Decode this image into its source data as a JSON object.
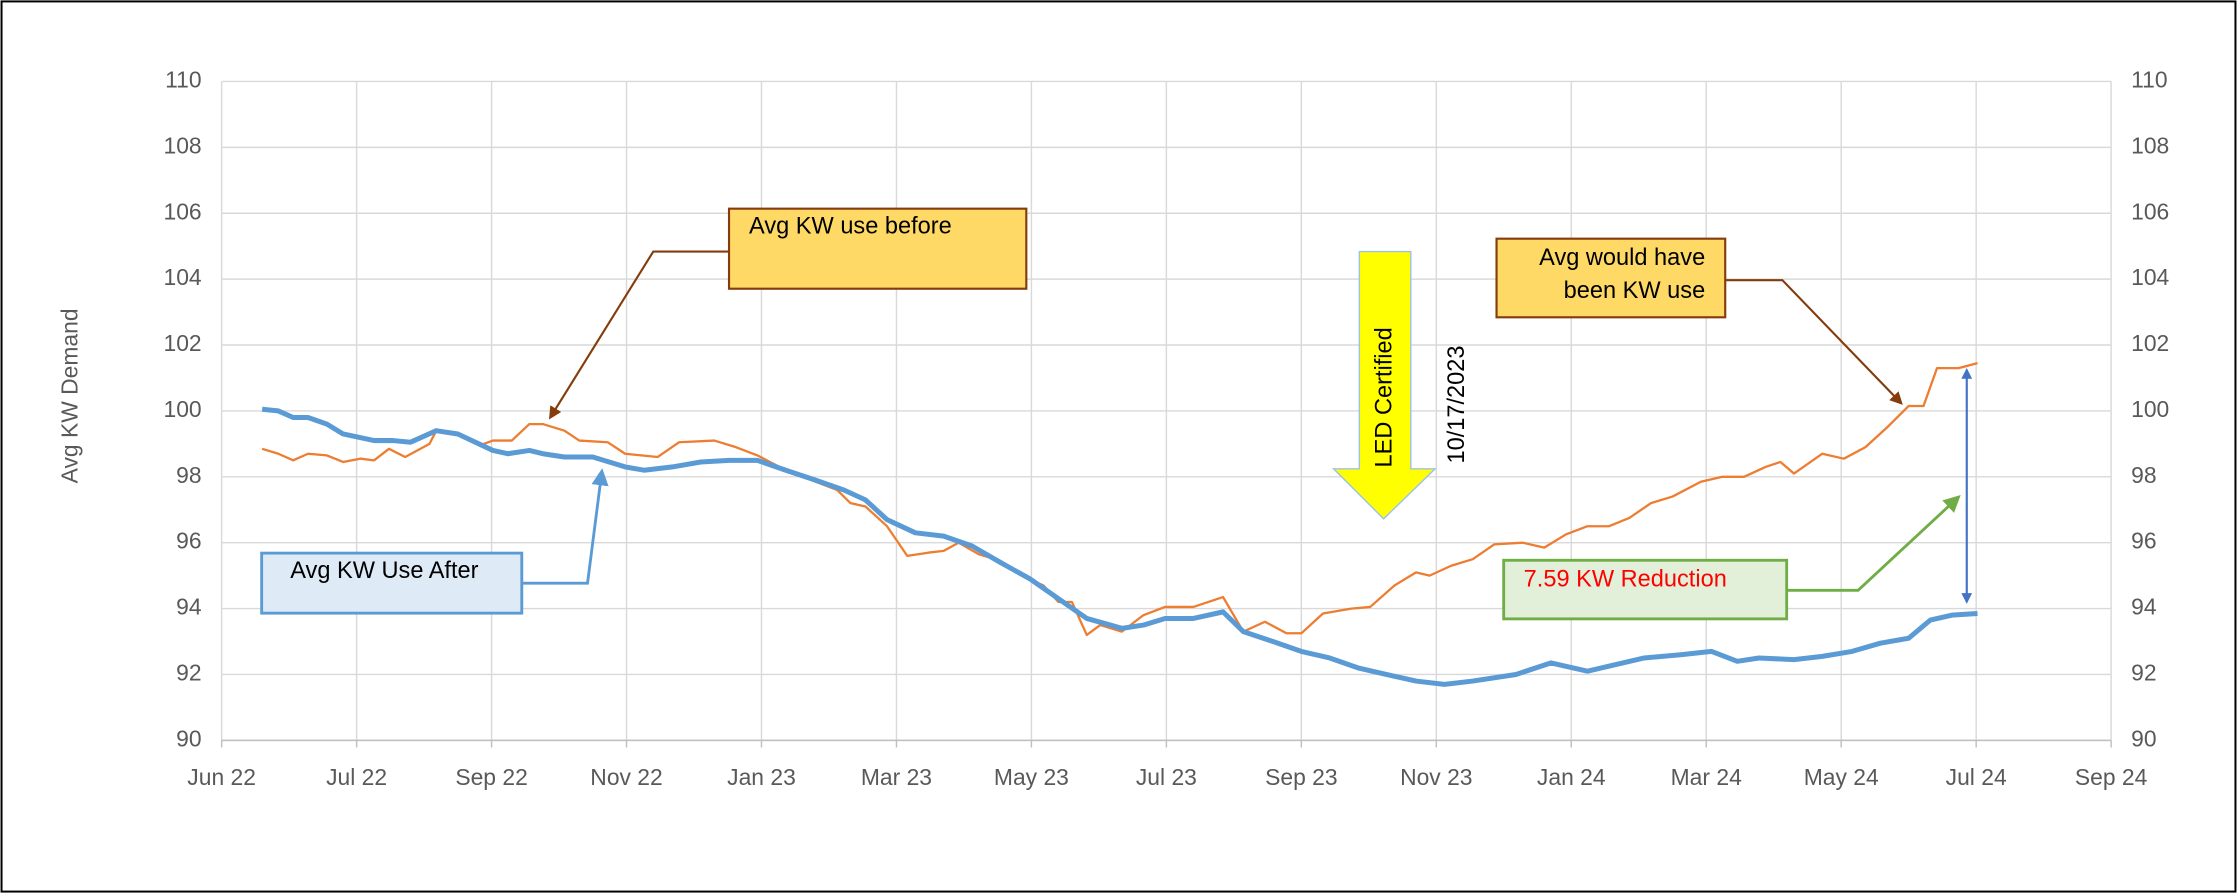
{
  "chart_data": {
    "type": "line",
    "ylabel": "Avg KW Demand",
    "xlim": [
      0,
      14
    ],
    "xticks": [
      {
        "value": 0,
        "label": "Jun 22"
      },
      {
        "value": 1,
        "label": "Jul 22"
      },
      {
        "value": 2,
        "label": "Sep 22"
      },
      {
        "value": 3,
        "label": "Nov 22"
      },
      {
        "value": 4,
        "label": "Jan 23"
      },
      {
        "value": 5,
        "label": "Mar 23"
      },
      {
        "value": 6,
        "label": "May 23"
      },
      {
        "value": 7,
        "label": "Jul 23"
      },
      {
        "value": 8,
        "label": "Sep 23"
      },
      {
        "value": 9,
        "label": "Nov 23"
      },
      {
        "value": 10,
        "label": "Jan 24"
      },
      {
        "value": 11,
        "label": "Mar 24"
      },
      {
        "value": 12,
        "label": "May 24"
      },
      {
        "value": 13,
        "label": "Jul 24"
      },
      {
        "value": 14,
        "label": "Sep 24"
      }
    ],
    "ylim": [
      90,
      110
    ],
    "yticks": [
      90,
      92,
      94,
      96,
      98,
      100,
      102,
      104,
      106,
      108,
      110
    ],
    "y2lim": [
      90,
      110
    ],
    "y2ticks": [
      90,
      92,
      94,
      96,
      98,
      100,
      102,
      104,
      106,
      108,
      110
    ],
    "grid": true,
    "series": [
      {
        "color": "#5b9bd5",
        "x": [
          0.3,
          0.42,
          0.53,
          0.64,
          0.78,
          0.9,
          1.13,
          1.27,
          1.4,
          1.59,
          1.75,
          2.01,
          2.12,
          2.28,
          2.38,
          2.54,
          2.75,
          2.99,
          3.13,
          3.34,
          3.55,
          3.76,
          3.97,
          4.18,
          4.4,
          4.61,
          4.77,
          4.93,
          5.14,
          5.35,
          5.56,
          5.77,
          5.99,
          6.2,
          6.41,
          6.67,
          6.83,
          6.99,
          7.2,
          7.42,
          7.57,
          7.79,
          8.0,
          8.21,
          8.42,
          8.63,
          8.85,
          9.06,
          9.27,
          9.59,
          9.85,
          10.12,
          10.33,
          10.54,
          10.81,
          11.04,
          11.23,
          11.39,
          11.65,
          11.86,
          12.08,
          12.29,
          12.5,
          12.66,
          12.82,
          13.01
        ],
        "values": [
          100.05,
          100.0,
          99.8,
          99.8,
          99.6,
          99.3,
          99.1,
          99.1,
          99.05,
          99.4,
          99.3,
          98.8,
          98.7,
          98.8,
          98.7,
          98.6,
          98.6,
          98.3,
          98.2,
          98.3,
          98.45,
          98.5,
          98.5,
          98.2,
          97.9,
          97.6,
          97.3,
          96.7,
          96.3,
          96.2,
          95.9,
          95.4,
          94.9,
          94.3,
          93.7,
          93.4,
          93.5,
          93.7,
          93.7,
          93.9,
          93.3,
          93.0,
          92.7,
          92.5,
          92.2,
          92.0,
          91.8,
          91.7,
          91.8,
          92.0,
          92.35,
          92.1,
          92.3,
          92.5,
          92.6,
          92.7,
          92.4,
          92.5,
          92.45,
          92.55,
          92.7,
          92.95,
          93.1,
          93.65,
          93.8,
          93.85
        ]
      },
      {
        "color": "#ed7d31",
        "x": [
          0.3,
          0.42,
          0.53,
          0.64,
          0.78,
          0.9,
          1.03,
          1.13,
          1.24,
          1.36,
          1.54,
          1.59,
          1.75,
          1.91,
          2.01,
          2.15,
          2.28,
          2.38,
          2.54,
          2.65,
          2.86,
          2.99,
          3.23,
          3.39,
          3.65,
          3.81,
          3.97,
          4.18,
          4.4,
          4.56,
          4.66,
          4.77,
          4.93,
          5.08,
          5.24,
          5.35,
          5.46,
          5.61,
          5.77,
          5.93,
          6.09,
          6.2,
          6.3,
          6.41,
          6.51,
          6.67,
          6.83,
          6.99,
          7.2,
          7.42,
          7.57,
          7.73,
          7.89,
          8.0,
          8.16,
          8.37,
          8.51,
          8.69,
          8.85,
          8.95,
          9.11,
          9.27,
          9.43,
          9.64,
          9.8,
          9.96,
          10.12,
          10.28,
          10.43,
          10.59,
          10.75,
          10.96,
          11.12,
          11.28,
          11.44,
          11.55,
          11.65,
          11.86,
          12.02,
          12.18,
          12.34,
          12.5,
          12.61,
          12.71,
          12.87,
          13.01
        ],
        "values": [
          98.85,
          98.7,
          98.5,
          98.7,
          98.65,
          98.45,
          98.55,
          98.5,
          98.85,
          98.6,
          99.0,
          99.4,
          99.3,
          98.95,
          99.1,
          99.1,
          99.6,
          99.6,
          99.4,
          99.1,
          99.05,
          98.7,
          98.6,
          99.05,
          99.1,
          98.9,
          98.65,
          98.2,
          97.85,
          97.6,
          97.2,
          97.1,
          96.5,
          95.6,
          95.7,
          95.75,
          96.0,
          95.65,
          95.45,
          95.0,
          94.7,
          94.2,
          94.2,
          93.2,
          93.5,
          93.3,
          93.8,
          94.05,
          94.05,
          94.35,
          93.3,
          93.6,
          93.25,
          93.25,
          93.85,
          94.0,
          94.05,
          94.7,
          95.1,
          95.0,
          95.3,
          95.5,
          95.95,
          96.0,
          95.85,
          96.25,
          96.5,
          96.5,
          96.75,
          97.2,
          97.4,
          97.85,
          98.0,
          98.0,
          98.3,
          98.45,
          98.1,
          98.7,
          98.55,
          98.9,
          99.5,
          100.15,
          100.15,
          101.3,
          101.3,
          101.45
        ]
      }
    ],
    "annotations": [
      "Avg KW use before",
      [
        "Avg would have",
        "been KW use"
      ],
      "Avg KW Use After",
      "LED Certified",
      "10/17/2023",
      "7.59 KW Reduction"
    ]
  }
}
